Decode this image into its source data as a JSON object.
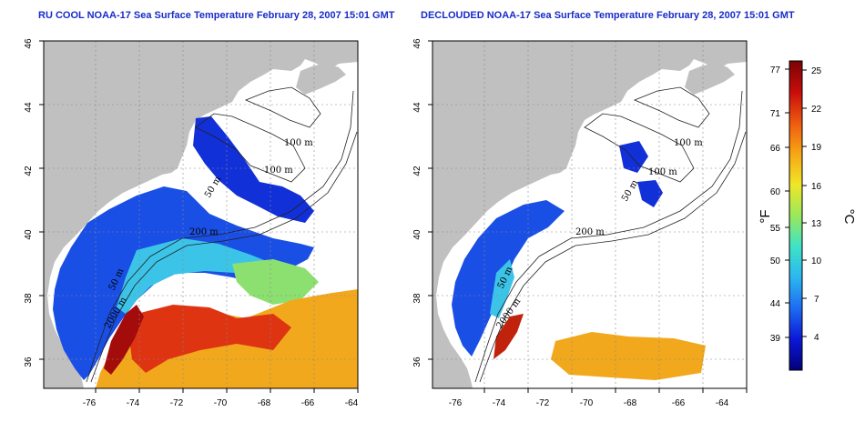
{
  "panels": [
    {
      "title": "RU COOL NOAA-17 Sea Surface Temperature February 28, 2007 15:01 GMT",
      "contour_labels": [
        "100 m",
        "50 m",
        "100 m",
        "200 m",
        "50 m",
        "2000 m"
      ]
    },
    {
      "title": "DECLOUDED NOAA-17 Sea Surface Temperature February 28, 2007 15:01 GMT",
      "contour_labels": [
        "100 m",
        "100 m",
        "50 m",
        "200 m",
        "50 m",
        "2000 m"
      ]
    }
  ],
  "map": {
    "lon_ticks": [
      "-76",
      "-74",
      "-72",
      "-70",
      "-68",
      "-66",
      "-64"
    ],
    "lat_ticks": [
      "46",
      "44",
      "42",
      "40",
      "38",
      "36"
    ],
    "grid": true,
    "land_color": "#c0c0c0",
    "no_data_color": "#ffffff"
  },
  "colorbar": {
    "fahrenheit_ticks": [
      "77",
      "71",
      "66",
      "60",
      "55",
      "50",
      "44",
      "39"
    ],
    "celsius_ticks": [
      "25",
      "22",
      "19",
      "16",
      "13",
      "10",
      "7",
      "4"
    ],
    "fahrenheit_label": "°F",
    "celsius_label": "°C",
    "colors": [
      "#05007a",
      "#0a18d8",
      "#1e6cf2",
      "#2cb6f0",
      "#3fe3c8",
      "#9ae85a",
      "#f0e628",
      "#f7a615",
      "#ee5a10",
      "#c80c0c",
      "#7a0404"
    ]
  }
}
